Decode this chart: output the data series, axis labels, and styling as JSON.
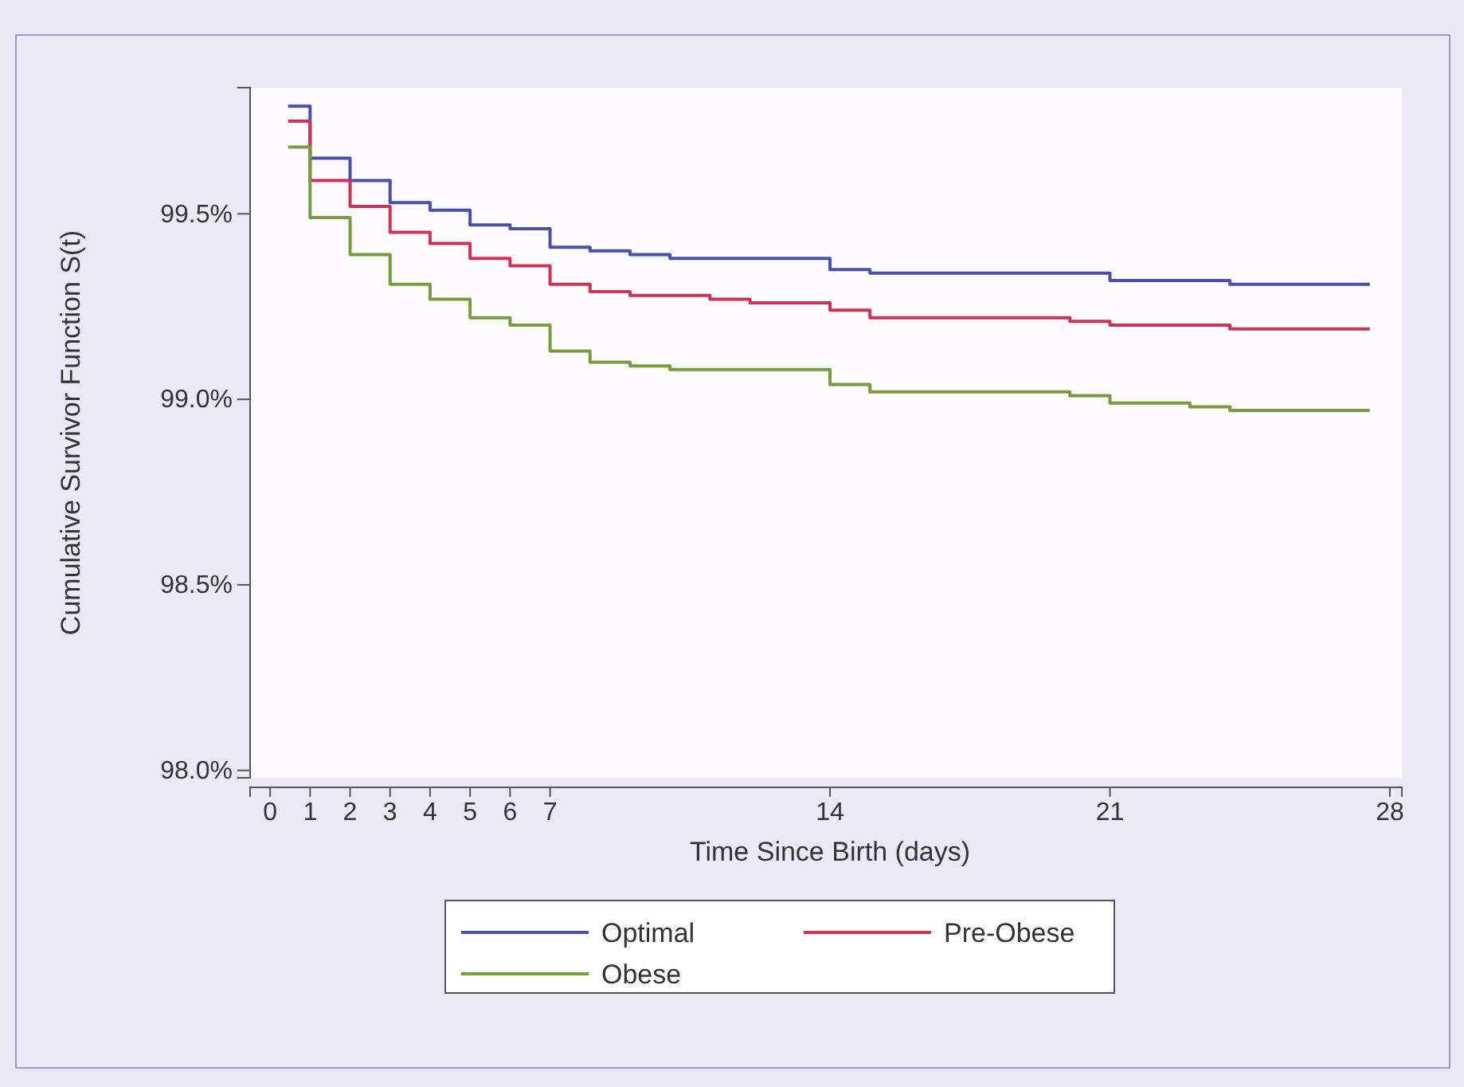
{
  "chart_data": {
    "type": "step",
    "xlabel": "Time Since Birth (days)",
    "ylabel": "Cumulative Survivor Function S(t)",
    "xlim": [
      -0.5,
      28.3
    ],
    "xticks": [
      0,
      1,
      2,
      3,
      4,
      5,
      6,
      7,
      14,
      21,
      28
    ],
    "ylim": [
      97.98,
      99.84
    ],
    "yticks": [
      {
        "value": 98.0,
        "label": "98.0%"
      },
      {
        "value": 98.5,
        "label": "98.5%"
      },
      {
        "value": 99.0,
        "label": "99.0%"
      },
      {
        "value": 99.5,
        "label": "99.5%"
      }
    ],
    "grid": false,
    "legend": "bottom",
    "line_style": "solid",
    "marker": "none",
    "series": [
      {
        "name": "Optimal",
        "color": "#4a4fa8",
        "x": [
          0.45,
          1,
          2,
          3,
          4,
          5,
          6,
          7,
          8,
          9,
          10,
          12,
          13,
          14,
          15,
          20,
          21,
          23,
          24,
          27.5
        ],
        "values": [
          99.79,
          99.65,
          99.59,
          99.53,
          99.51,
          99.47,
          99.46,
          99.41,
          99.4,
          99.39,
          99.38,
          99.38,
          99.38,
          99.35,
          99.34,
          99.34,
          99.32,
          99.32,
          99.31,
          99.31
        ]
      },
      {
        "name": "Pre-Obese",
        "color": "#cc3355",
        "x": [
          0.45,
          1,
          2,
          3,
          4,
          5,
          6,
          7,
          8,
          9,
          11,
          12,
          14,
          15,
          20,
          21,
          23,
          24,
          27.5
        ],
        "values": [
          99.75,
          99.59,
          99.52,
          99.45,
          99.42,
          99.38,
          99.36,
          99.31,
          99.29,
          99.28,
          99.27,
          99.26,
          99.24,
          99.22,
          99.21,
          99.2,
          99.2,
          99.19,
          99.19
        ]
      },
      {
        "name": "Obese",
        "color": "#7a9a40",
        "x": [
          0.45,
          1,
          2,
          3,
          4,
          5,
          6,
          7,
          8,
          9,
          10,
          11,
          14,
          15,
          20,
          21,
          23,
          24,
          27.5
        ],
        "values": [
          99.68,
          99.49,
          99.39,
          99.31,
          99.27,
          99.22,
          99.2,
          99.13,
          99.1,
          99.09,
          99.08,
          99.08,
          99.04,
          99.02,
          99.01,
          98.99,
          98.98,
          98.97,
          98.97
        ]
      }
    ]
  }
}
